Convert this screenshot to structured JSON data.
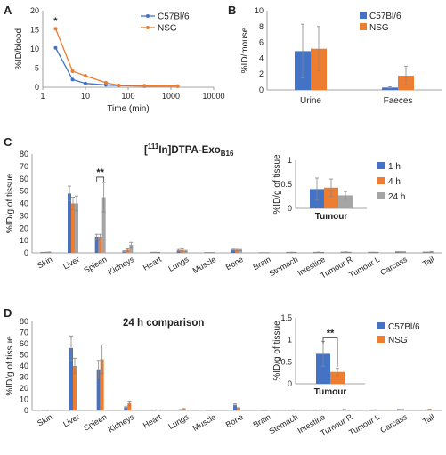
{
  "colors": {
    "blue": "#4472C4",
    "orange": "#ED7D31",
    "gray": "#A5A5A5"
  },
  "panels": {
    "A": {
      "letter": "A"
    },
    "B": {
      "letter": "B"
    },
    "C": {
      "letter": "C",
      "title_main": "[",
      "title_sup": "111",
      "title_mid": "In]DTPA-Exo",
      "title_sub": "B16"
    },
    "D": {
      "letter": "D",
      "title": "24 h comparison"
    }
  },
  "chart_data": [
    {
      "id": "A",
      "type": "line",
      "xlabel": "Time (min)",
      "ylabel": "%ID/blood",
      "xscale": "log",
      "xlim": [
        1,
        10000
      ],
      "ylim": [
        0,
        20
      ],
      "xticks": [
        "1",
        "10",
        "100",
        "1000",
        "10000"
      ],
      "yticks": [
        "0",
        "5",
        "10",
        "15",
        "20"
      ],
      "legend_position": "top-right",
      "annotations": [
        "*"
      ],
      "series": [
        {
          "name": "C57Bl/6",
          "color": "#4472C4",
          "x": [
            2,
            5,
            10,
            30,
            60,
            240,
            1440
          ],
          "y": [
            10.3,
            2.0,
            1.0,
            0.6,
            0.4,
            0.3,
            0.3
          ]
        },
        {
          "name": "NSG",
          "color": "#ED7D31",
          "x": [
            2,
            5,
            10,
            30,
            60,
            240,
            1440
          ],
          "y": [
            15.3,
            4.2,
            3.0,
            1.2,
            0.5,
            0.4,
            0.3
          ]
        }
      ]
    },
    {
      "id": "B",
      "type": "bar",
      "ylabel": "%ID/mouse",
      "ylim": [
        0,
        10
      ],
      "yticks": [
        "0",
        "2",
        "4",
        "6",
        "8",
        "10"
      ],
      "categories": [
        "Urine",
        "Faeces"
      ],
      "legend_position": "top-right",
      "series": [
        {
          "name": "C57Bl/6",
          "color": "#4472C4",
          "values": [
            4.9,
            0.3
          ],
          "errors": [
            3.4,
            0.1
          ]
        },
        {
          "name": "NSG",
          "color": "#ED7D31",
          "values": [
            5.2,
            1.8
          ],
          "errors": [
            2.8,
            1.2
          ]
        }
      ]
    },
    {
      "id": "C",
      "type": "bar",
      "ylabel": "%ID/g of tissue",
      "ylim": [
        0,
        80
      ],
      "yticks": [
        "0",
        "10",
        "20",
        "30",
        "40",
        "50",
        "60",
        "70",
        "80"
      ],
      "categories": [
        "Skin",
        "Liver",
        "Spleen",
        "Kidneys",
        "Heart",
        "Lungs",
        "Muscle",
        "Bone",
        "Brain",
        "Stomach",
        "Intestine",
        "Tumour R",
        "Tumour L",
        "Carcass",
        "Tail"
      ],
      "annotations": [
        "**"
      ],
      "series": [
        {
          "name": "1 h",
          "color": "#4472C4",
          "values": [
            0.3,
            48,
            13,
            1.2,
            0.3,
            2.0,
            0.2,
            2.5,
            0.1,
            0.3,
            0.3,
            0.5,
            0.4,
            0.8,
            0.5
          ],
          "errors": [
            0.2,
            6,
            2,
            0.6,
            0.2,
            0.8,
            0.1,
            0.5,
            0.1,
            0.2,
            0.2,
            0.2,
            0.2,
            0.2,
            0.2
          ]
        },
        {
          "name": "4 h",
          "color": "#ED7D31",
          "values": [
            0.4,
            40,
            13,
            2.5,
            0.4,
            2.5,
            0.2,
            2.4,
            0.1,
            0.4,
            0.5,
            0.6,
            0.4,
            0.8,
            0.5
          ],
          "errors": [
            0.2,
            5,
            2,
            0.8,
            0.2,
            0.8,
            0.1,
            0.5,
            0.1,
            0.2,
            0.2,
            0.3,
            0.2,
            0.2,
            0.2
          ]
        },
        {
          "name": "24 h",
          "color": "#A5A5A5",
          "values": [
            0.5,
            40,
            45,
            6.5,
            0.3,
            1.5,
            0.2,
            2.3,
            0.1,
            0.3,
            0.3,
            0.4,
            0.3,
            0.7,
            0.8
          ],
          "errors": [
            0.3,
            6,
            12,
            2.0,
            0.2,
            0.6,
            0.1,
            0.5,
            0.1,
            0.2,
            0.2,
            0.2,
            0.2,
            0.2,
            0.4
          ]
        }
      ],
      "inset": {
        "ylabel": "%ID/g of tissue",
        "xlabel": "Tumour",
        "ylim": [
          0,
          1
        ],
        "yticks": [
          "0",
          "0.5",
          "1"
        ],
        "legend_position": "right",
        "series": [
          {
            "name": "1 h",
            "color": "#4472C4",
            "value": 0.4,
            "error": 0.23
          },
          {
            "name": "4 h",
            "color": "#ED7D31",
            "value": 0.43,
            "error": 0.18
          },
          {
            "name": "24 h",
            "color": "#A5A5A5",
            "value": 0.27,
            "error": 0.08
          }
        ]
      }
    },
    {
      "id": "D",
      "type": "bar",
      "ylabel": "%ID/g of tissue",
      "ylim": [
        0,
        80
      ],
      "yticks": [
        "0",
        "10",
        "20",
        "30",
        "40",
        "50",
        "60",
        "70",
        "80"
      ],
      "categories": [
        "Skin",
        "Liver",
        "Spleen",
        "Kidneys",
        "Heart",
        "Lungs",
        "Muscle",
        "Bone",
        "Brain",
        "Stomach",
        "Intestine",
        "Tumour R",
        "Tumour L",
        "Carcass",
        "Tail"
      ],
      "series": [
        {
          "name": "C57Bl/6",
          "color": "#4472C4",
          "values": [
            0.3,
            56,
            37,
            3.0,
            0.3,
            0.5,
            0.2,
            5.0,
            0.1,
            0.3,
            0.3,
            0.7,
            0.3,
            0.8,
            0.4
          ],
          "errors": [
            0.2,
            11,
            8,
            0.8,
            0.2,
            0.3,
            0.1,
            1.0,
            0.1,
            0.2,
            0.2,
            0.3,
            0.2,
            0.2,
            0.2
          ]
        },
        {
          "name": "NSG",
          "color": "#ED7D31",
          "values": [
            0.3,
            40,
            46,
            6.5,
            0.4,
            1.2,
            0.2,
            2.0,
            0.1,
            0.4,
            0.4,
            0.3,
            0.4,
            0.7,
            0.8
          ],
          "errors": [
            0.2,
            7,
            13,
            2.0,
            0.2,
            0.5,
            0.1,
            0.5,
            0.1,
            0.2,
            0.2,
            0.1,
            0.2,
            0.2,
            0.4
          ]
        }
      ],
      "inset": {
        "ylabel": "%ID/g of tissue",
        "xlabel": "Tumour",
        "ylim": [
          0,
          1.5
        ],
        "yticks": [
          "0",
          "0.5",
          "1",
          "1.5"
        ],
        "annotations": [
          "**"
        ],
        "series": [
          {
            "name": "C57Bl/6",
            "color": "#4472C4",
            "value": 0.68,
            "error": 0.28
          },
          {
            "name": "NSG",
            "color": "#ED7D31",
            "value": 0.27,
            "error": 0.08
          }
        ]
      }
    }
  ]
}
